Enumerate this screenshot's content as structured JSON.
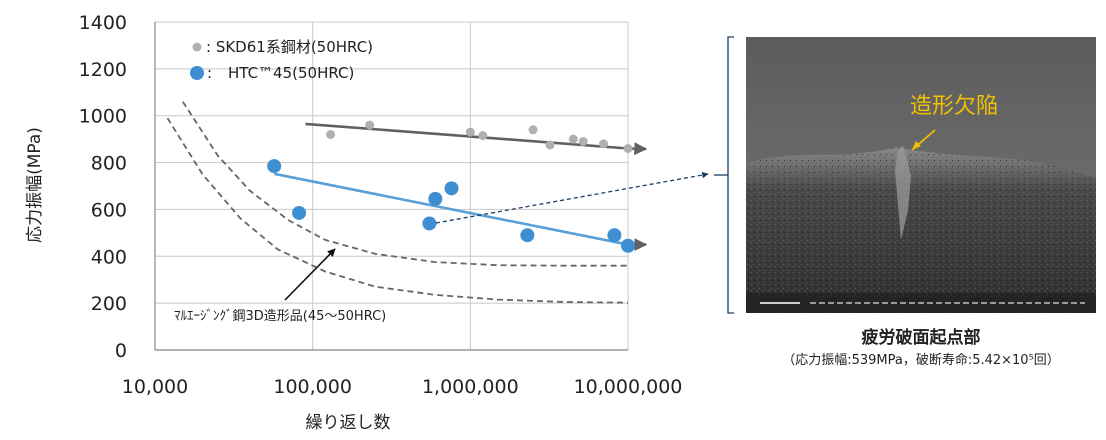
{
  "chart_data": {
    "type": "scatter",
    "xscale": "log",
    "xlim": [
      10000,
      10000000
    ],
    "ylim": [
      0,
      1400
    ],
    "xticks": [
      10000,
      100000,
      1000000,
      10000000
    ],
    "xtick_labels": [
      "10,000",
      "100,000",
      "1,000,000",
      "10,000,000"
    ],
    "yticks": [
      0,
      200,
      400,
      600,
      800,
      1000,
      1200,
      1400
    ],
    "ytick_labels": [
      "0",
      "200",
      "400",
      "600",
      "800",
      "1000",
      "1200",
      "1400"
    ],
    "xlabel": "繰り返し数",
    "ylabel": "応力振幅(MPa)",
    "grid": true,
    "series": [
      {
        "name": ": SKD61系鋼材(50HRC)",
        "color": "#b0b0b0",
        "marker_size": 4.5,
        "points": [
          [
            130000,
            920
          ],
          [
            230000,
            960
          ],
          [
            1000000,
            930
          ],
          [
            1200000,
            915
          ],
          [
            2500000,
            940
          ],
          [
            3200000,
            875
          ],
          [
            4500000,
            900
          ],
          [
            5200000,
            890
          ],
          [
            7000000,
            880
          ],
          [
            10000000,
            860
          ]
        ],
        "trend": {
          "color": "#606060",
          "from": [
            90000,
            965
          ],
          "to": [
            10000000,
            860
          ],
          "arrow_to": [
            13000000,
            858
          ]
        }
      },
      {
        "name": "HTC™45(50HRC)",
        "color": "#3d8fd1",
        "marker_size": 7,
        "points": [
          [
            57000,
            785
          ],
          [
            82000,
            585
          ],
          [
            550000,
            540
          ],
          [
            600000,
            645
          ],
          [
            760000,
            690
          ],
          [
            2300000,
            490
          ],
          [
            8200000,
            490
          ],
          [
            10000000,
            445
          ]
        ],
        "trend": {
          "color": "#5aa0d8",
          "from": [
            57000,
            752
          ],
          "to": [
            10000000,
            450
          ],
          "arrow_to": [
            13000000,
            450
          ]
        }
      }
    ],
    "curves": [
      {
        "style": "dashed",
        "color": "#666666",
        "points": [
          [
            15000,
            1060
          ],
          [
            25000,
            830
          ],
          [
            40000,
            680
          ],
          [
            70000,
            555
          ],
          [
            120000,
            470
          ],
          [
            250000,
            410
          ],
          [
            600000,
            375
          ],
          [
            1500000,
            362
          ],
          [
            4000000,
            360
          ],
          [
            10000000,
            360
          ]
        ]
      },
      {
        "style": "dashed",
        "color": "#666666",
        "points": [
          [
            12000,
            990
          ],
          [
            20000,
            750
          ],
          [
            35000,
            560
          ],
          [
            60000,
            430
          ],
          [
            120000,
            335
          ],
          [
            250000,
            270
          ],
          [
            600000,
            235
          ],
          [
            1500000,
            215
          ],
          [
            4000000,
            205
          ],
          [
            10000000,
            202
          ]
        ]
      }
    ],
    "annotations": {
      "maraging_label": "ﾏﾙｴｰｼﾞﾝｸﾞ鋼3D造形品(45～50HRC)",
      "defect_label": "造形欠陥"
    }
  },
  "figure": {
    "caption_title": "疲労破面起点部",
    "caption_sub": "（応力振幅:539MPa，破断寿命:5.42×10⁵回）"
  },
  "colors": {
    "axis": "#888888",
    "grid": "#c8c8c8",
    "pointer_arrow": "#1f3d63",
    "defect": "#f2c200"
  }
}
